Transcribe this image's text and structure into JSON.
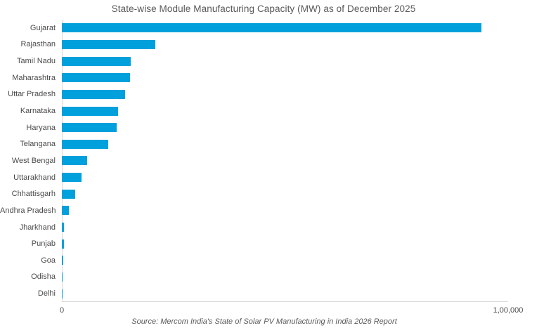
{
  "chart_data": {
    "type": "bar",
    "orientation": "horizontal",
    "title": "State-wise Module Manufacturing Capacity (MW) as of December 2025",
    "source": "Source: Mercom India's State of Solar PV Manufacturing in India 2026 Report",
    "categories": [
      "Gujarat",
      "Rajasthan",
      "Tamil Nadu",
      "Maharashtra",
      "Uttar Pradesh",
      "Karnataka",
      "Haryana",
      "Telangana",
      "West Bengal",
      "Uttarakhand",
      "Chhattisgarh",
      "Andhra Pradesh",
      "Jharkhand",
      "Punjab",
      "Goa",
      "Odisha",
      "Delhi"
    ],
    "values": [
      94000,
      21000,
      15500,
      15200,
      14100,
      12650,
      12300,
      10400,
      5700,
      4450,
      3000,
      1600,
      500,
      480,
      300,
      120,
      30
    ],
    "xlabel": "",
    "ylabel": "",
    "xlim": [
      0,
      100000
    ],
    "x_ticks": [
      "0",
      "1,00,000"
    ],
    "bar_color": "#00A0DC",
    "axis_line_color": "#d9d9d9",
    "grid": false,
    "legend": false
  }
}
